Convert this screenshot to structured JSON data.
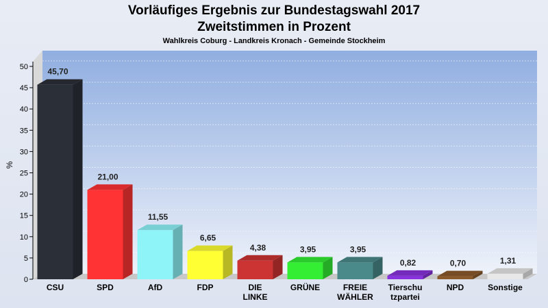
{
  "chart_data": {
    "type": "bar",
    "title": [
      "Vorläufiges Ergebnis zur Bundestagswahl 2017",
      "Zweitstimmen in Prozent"
    ],
    "subtitle": "Wahlkreis Coburg - Landkreis Kronach - Gemeinde Stockheim",
    "ylabel": "%",
    "ylim": [
      0,
      50
    ],
    "yticks": [
      "0",
      "5",
      "10",
      "15",
      "20",
      "25",
      "30",
      "35",
      "40",
      "45",
      "50"
    ],
    "grid": true,
    "categories": [
      [
        "CSU"
      ],
      [
        "SPD"
      ],
      [
        "AfD"
      ],
      [
        "FDP"
      ],
      [
        "DIE",
        "LINKE"
      ],
      [
        "GRÜNE"
      ],
      [
        "FREIE",
        "WÄHLER"
      ],
      [
        "Tierschu",
        "tzpartei"
      ],
      [
        "NPD"
      ],
      [
        "Sonstige"
      ]
    ],
    "values": [
      45.7,
      21.0,
      11.55,
      6.65,
      4.38,
      3.95,
      3.95,
      0.82,
      0.7,
      1.31
    ],
    "value_labels": [
      "45,70",
      "21,00",
      "11,55",
      "6,65",
      "4,38",
      "3,95",
      "3,95",
      "0,82",
      "0,70",
      "1,31"
    ],
    "colors": [
      "#2b2f37",
      "#ff3333",
      "#8ef4f8",
      "#ffff33",
      "#cc3333",
      "#33ee33",
      "#4a8a8a",
      "#8833dd",
      "#8b5a2b",
      "#e8e8e8"
    ]
  }
}
